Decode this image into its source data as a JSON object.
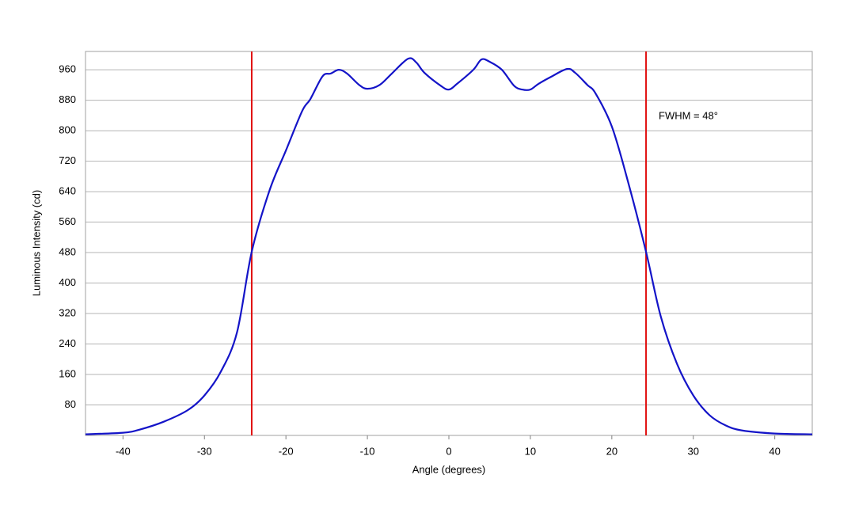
{
  "chart_data": {
    "type": "line",
    "x_label": "Angle (degrees)",
    "y_label": "Luminous Intensity (cd)",
    "annotation": "FWHM = 48°",
    "x": [
      -44.6,
      -40,
      -38,
      -35,
      -32,
      -30,
      -28,
      -26,
      -24.2,
      -22,
      -20,
      -18,
      -17,
      -15.5,
      -14.5,
      -13.5,
      -12.5,
      -11,
      -10,
      -8.5,
      -7,
      -5,
      -4,
      -3,
      -1,
      0,
      1,
      3,
      4,
      5,
      6.5,
      8,
      9,
      10,
      11,
      12.5,
      14.5,
      15.5,
      17,
      18,
      20,
      22,
      24.2,
      26,
      28,
      30,
      32,
      34,
      36,
      40,
      44.6
    ],
    "series": [
      {
        "name": "Luminous Intensity",
        "color": "#1414c8",
        "values": [
          3,
          7,
          15,
          36,
          67,
          105,
          167,
          271,
          482,
          644,
          748,
          852,
          883,
          943,
          950,
          960,
          950,
          920,
          910,
          920,
          950,
          989,
          979,
          952,
          918,
          908,
          923,
          960,
          987,
          981,
          960,
          918,
          908,
          908,
          923,
          941,
          962,
          952,
          920,
          898,
          811,
          665,
          482,
          313,
          188,
          105,
          53,
          26,
          13,
          5,
          3
        ]
      }
    ],
    "vlines": [
      -24.2,
      24.2
    ],
    "vline_color": "#e01010",
    "xlim": [
      -44.6,
      44.6
    ],
    "xticks": [
      -40,
      -30,
      -20,
      -10,
      0,
      10,
      20,
      30,
      40
    ],
    "ylim": [
      0,
      1008
    ],
    "yticks": [
      80,
      160,
      240,
      320,
      400,
      480,
      560,
      640,
      720,
      800,
      880,
      960
    ],
    "grid": true
  }
}
